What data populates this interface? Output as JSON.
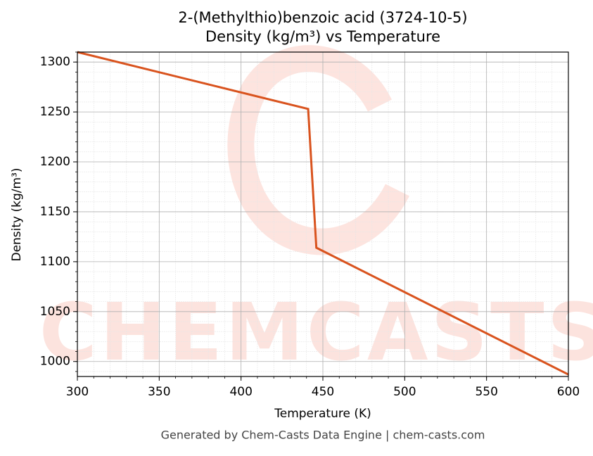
{
  "chart_data": {
    "type": "line",
    "title": "2-(Methylthio)benzoic acid (3724-10-5)",
    "subtitle": "Density (kg/m³) vs Temperature",
    "x_label": "Temperature (K)",
    "y_label": "Density (kg/m³)",
    "x": [
      300,
      441,
      446,
      600
    ],
    "series": [
      {
        "name": "Density",
        "color": "#d9531e",
        "values": [
          1310,
          1253,
          1114,
          987
        ]
      }
    ],
    "xlim": [
      300,
      600
    ],
    "xticks": [
      300,
      350,
      400,
      450,
      500,
      550,
      600
    ],
    "ylim": [
      985,
      1310
    ],
    "yticks": [
      1000,
      1050,
      1100,
      1150,
      1200,
      1250,
      1300
    ],
    "grid": true,
    "minor_grid": true,
    "watermark": "CHEMCASTS",
    "footer": "Generated by Chem-Casts Data Engine | chem-casts.com"
  }
}
